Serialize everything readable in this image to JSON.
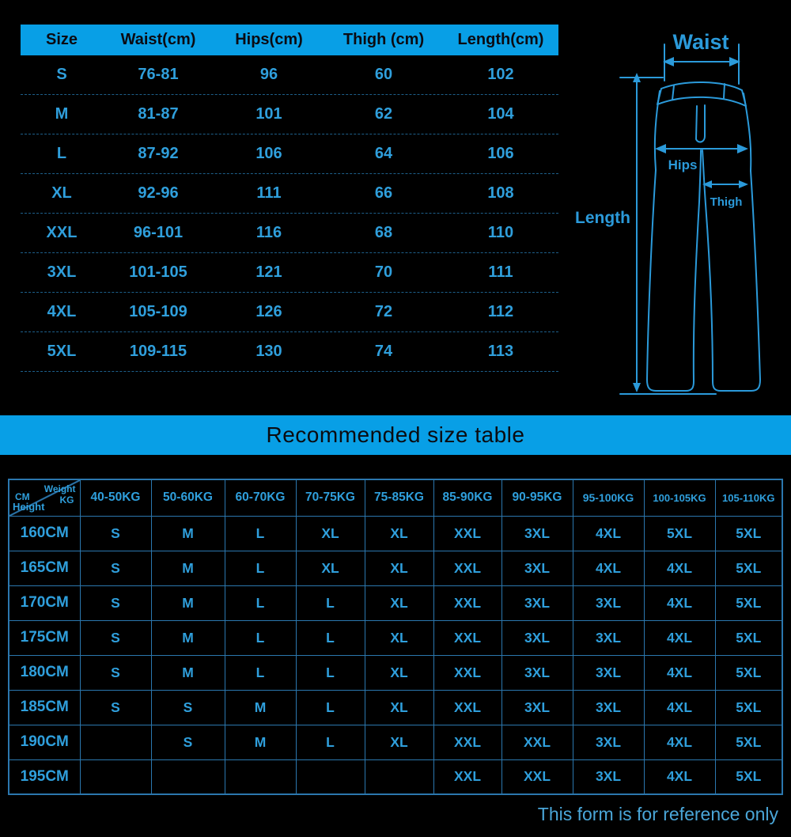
{
  "colors": {
    "background": "#000000",
    "accent_blue": "#089fe6",
    "header_text_dark": "#0b0b12",
    "table_text_blue": "#2f9fdc",
    "grid_line_blue": "#2b77ae",
    "dashed_line_blue": "#1d5f8a",
    "diagram_blue": "#2b9ada",
    "note_blue": "#4aa6d8"
  },
  "measurement_table": {
    "headers": [
      "Size",
      "Waist(cm)",
      "Hips(cm)",
      "Thigh (cm)",
      "Length(cm)"
    ],
    "rows": [
      [
        "S",
        "76-81",
        "96",
        "60",
        "102"
      ],
      [
        "M",
        "81-87",
        "101",
        "62",
        "104"
      ],
      [
        "L",
        "87-92",
        "106",
        "64",
        "106"
      ],
      [
        "XL",
        "92-96",
        "111",
        "66",
        "108"
      ],
      [
        "XXL",
        "96-101",
        "116",
        "68",
        "110"
      ],
      [
        "3XL",
        "101-105",
        "121",
        "70",
        "111"
      ],
      [
        "4XL",
        "105-109",
        "126",
        "72",
        "112"
      ],
      [
        "5XL",
        "109-115",
        "130",
        "74",
        "113"
      ]
    ]
  },
  "diagram": {
    "waist_label": "Waist",
    "hips_label": "Hips",
    "thigh_label": "Thigh",
    "length_label": "Length"
  },
  "banner": {
    "title": "Recommended size table"
  },
  "recommended_table": {
    "corner": {
      "weight": "Weight",
      "kg": "KG",
      "cm": "CM",
      "height": "Height"
    },
    "weight_headers": [
      "40-50KG",
      "50-60KG",
      "60-70KG",
      "70-75KG",
      "75-85KG",
      "85-90KG",
      "90-95KG",
      "95-100KG",
      "100-105KG",
      "105-110KG"
    ],
    "rows": [
      {
        "height": "160CM",
        "sizes": [
          "S",
          "M",
          "L",
          "XL",
          "XL",
          "XXL",
          "3XL",
          "4XL",
          "5XL",
          "5XL"
        ]
      },
      {
        "height": "165CM",
        "sizes": [
          "S",
          "M",
          "L",
          "XL",
          "XL",
          "XXL",
          "3XL",
          "4XL",
          "4XL",
          "5XL"
        ]
      },
      {
        "height": "170CM",
        "sizes": [
          "S",
          "M",
          "L",
          "L",
          "XL",
          "XXL",
          "3XL",
          "3XL",
          "4XL",
          "5XL"
        ]
      },
      {
        "height": "175CM",
        "sizes": [
          "S",
          "M",
          "L",
          "L",
          "XL",
          "XXL",
          "3XL",
          "3XL",
          "4XL",
          "5XL"
        ]
      },
      {
        "height": "180CM",
        "sizes": [
          "S",
          "M",
          "L",
          "L",
          "XL",
          "XXL",
          "3XL",
          "3XL",
          "4XL",
          "5XL"
        ]
      },
      {
        "height": "185CM",
        "sizes": [
          "S",
          "S",
          "M",
          "L",
          "XL",
          "XXL",
          "3XL",
          "3XL",
          "4XL",
          "5XL"
        ]
      },
      {
        "height": "190CM",
        "sizes": [
          "",
          "S",
          "M",
          "L",
          "XL",
          "XXL",
          "XXL",
          "3XL",
          "4XL",
          "5XL"
        ]
      },
      {
        "height": "195CM",
        "sizes": [
          "",
          "",
          "",
          "",
          "",
          "XXL",
          "XXL",
          "3XL",
          "4XL",
          "5XL"
        ]
      }
    ]
  },
  "footer": {
    "note": "This form is for reference only"
  }
}
